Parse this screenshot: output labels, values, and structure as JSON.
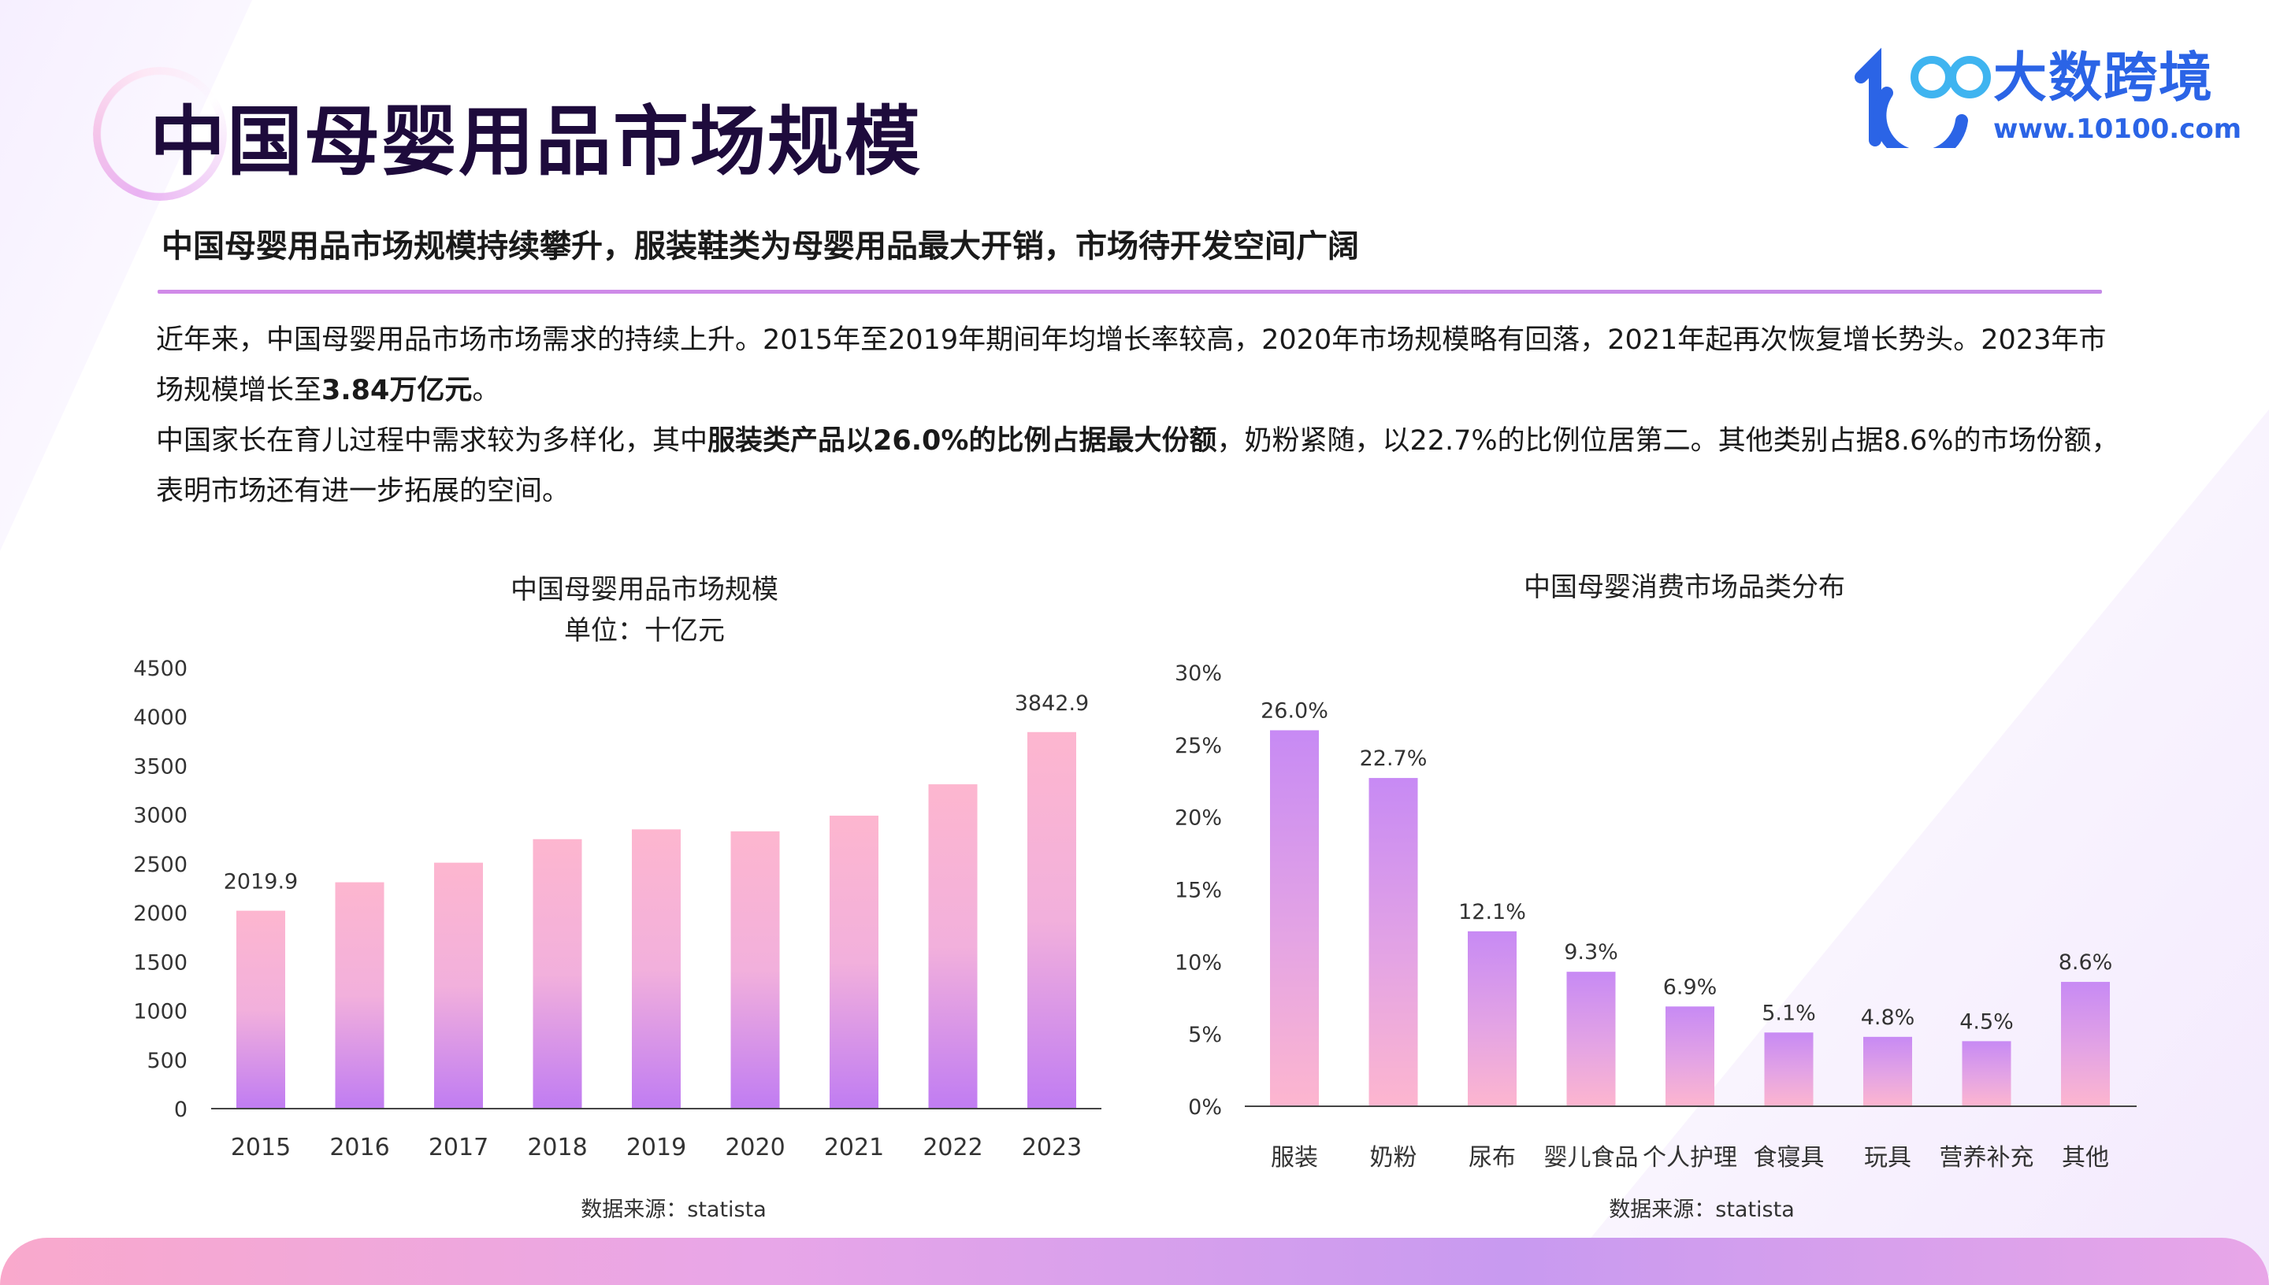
{
  "header": {
    "page_title": "中国母婴用品市场规模",
    "logo_text": "大数跨境",
    "logo_url": "www.10100.com",
    "logo_mark_text": "100"
  },
  "summary": {
    "subtitle": "中国母婴用品市场规模持续攀升，服装鞋类为母婴用品最大开销，市场待开发空间广阔",
    "para1_text": "近年来，中国母婴用品市场市场需求的持续上升。2015年至2019年期间年均增长率较高，2020年市场规模略有回落，2021年起再次恢复增长势头。2023年市场规模增长至",
    "para1_bold": "3.84万亿元",
    "para1_end": "。",
    "para2_start": "中国家长在育儿过程中需求较为多样化，其中",
    "para2_bold": "服装类产品以26.0%的比例占据最大份额",
    "para2_end": "，奶粉紧随，以22.7%的比例位居第二。其他类别占据8.6%的市场份额，表明市场还有进一步拓展的空间。"
  },
  "colors": {
    "title": "#1e0b3c",
    "accent_purple": "#c58be8",
    "bar_pink": "#fdb6cf",
    "bar_purple": "#c07cf2",
    "logo_blue": "#2b64e6"
  },
  "chart_data": [
    {
      "type": "bar",
      "title": "中国母婴用品市场规模",
      "subtitle": "单位：十亿元",
      "categories": [
        "2015",
        "2016",
        "2017",
        "2018",
        "2019",
        "2020",
        "2021",
        "2022",
        "2023"
      ],
      "values": [
        2019.9,
        2310,
        2510,
        2750,
        2850,
        2830,
        2990,
        3310,
        3842.9
      ],
      "data_labels": {
        "0": "2019.9",
        "8": "3842.9"
      },
      "ylim": [
        0,
        4500
      ],
      "yticks": [
        "0",
        "500",
        "1000",
        "1500",
        "2000",
        "2500",
        "3000",
        "3500",
        "4000",
        "4500"
      ],
      "source": "数据来源：statista",
      "grid": false
    },
    {
      "type": "bar",
      "title": "中国母婴消费市场品类分布",
      "categories": [
        "服装",
        "奶粉",
        "尿布",
        "婴儿食品",
        "个人护理",
        "食寝具",
        "玩具",
        "营养补充",
        "其他"
      ],
      "values": [
        26.0,
        22.7,
        12.1,
        9.3,
        6.9,
        5.1,
        4.8,
        4.5,
        8.6
      ],
      "data_labels": [
        "26.0%",
        "22.7%",
        "12.1%",
        "9.3%",
        "6.9%",
        "5.1%",
        "4.8%",
        "4.5%",
        "8.6%"
      ],
      "ylim": [
        0,
        30
      ],
      "yticks": [
        "0%",
        "5%",
        "10%",
        "15%",
        "20%",
        "25%",
        "30%"
      ],
      "source": "数据来源：statista",
      "grid": false
    }
  ]
}
